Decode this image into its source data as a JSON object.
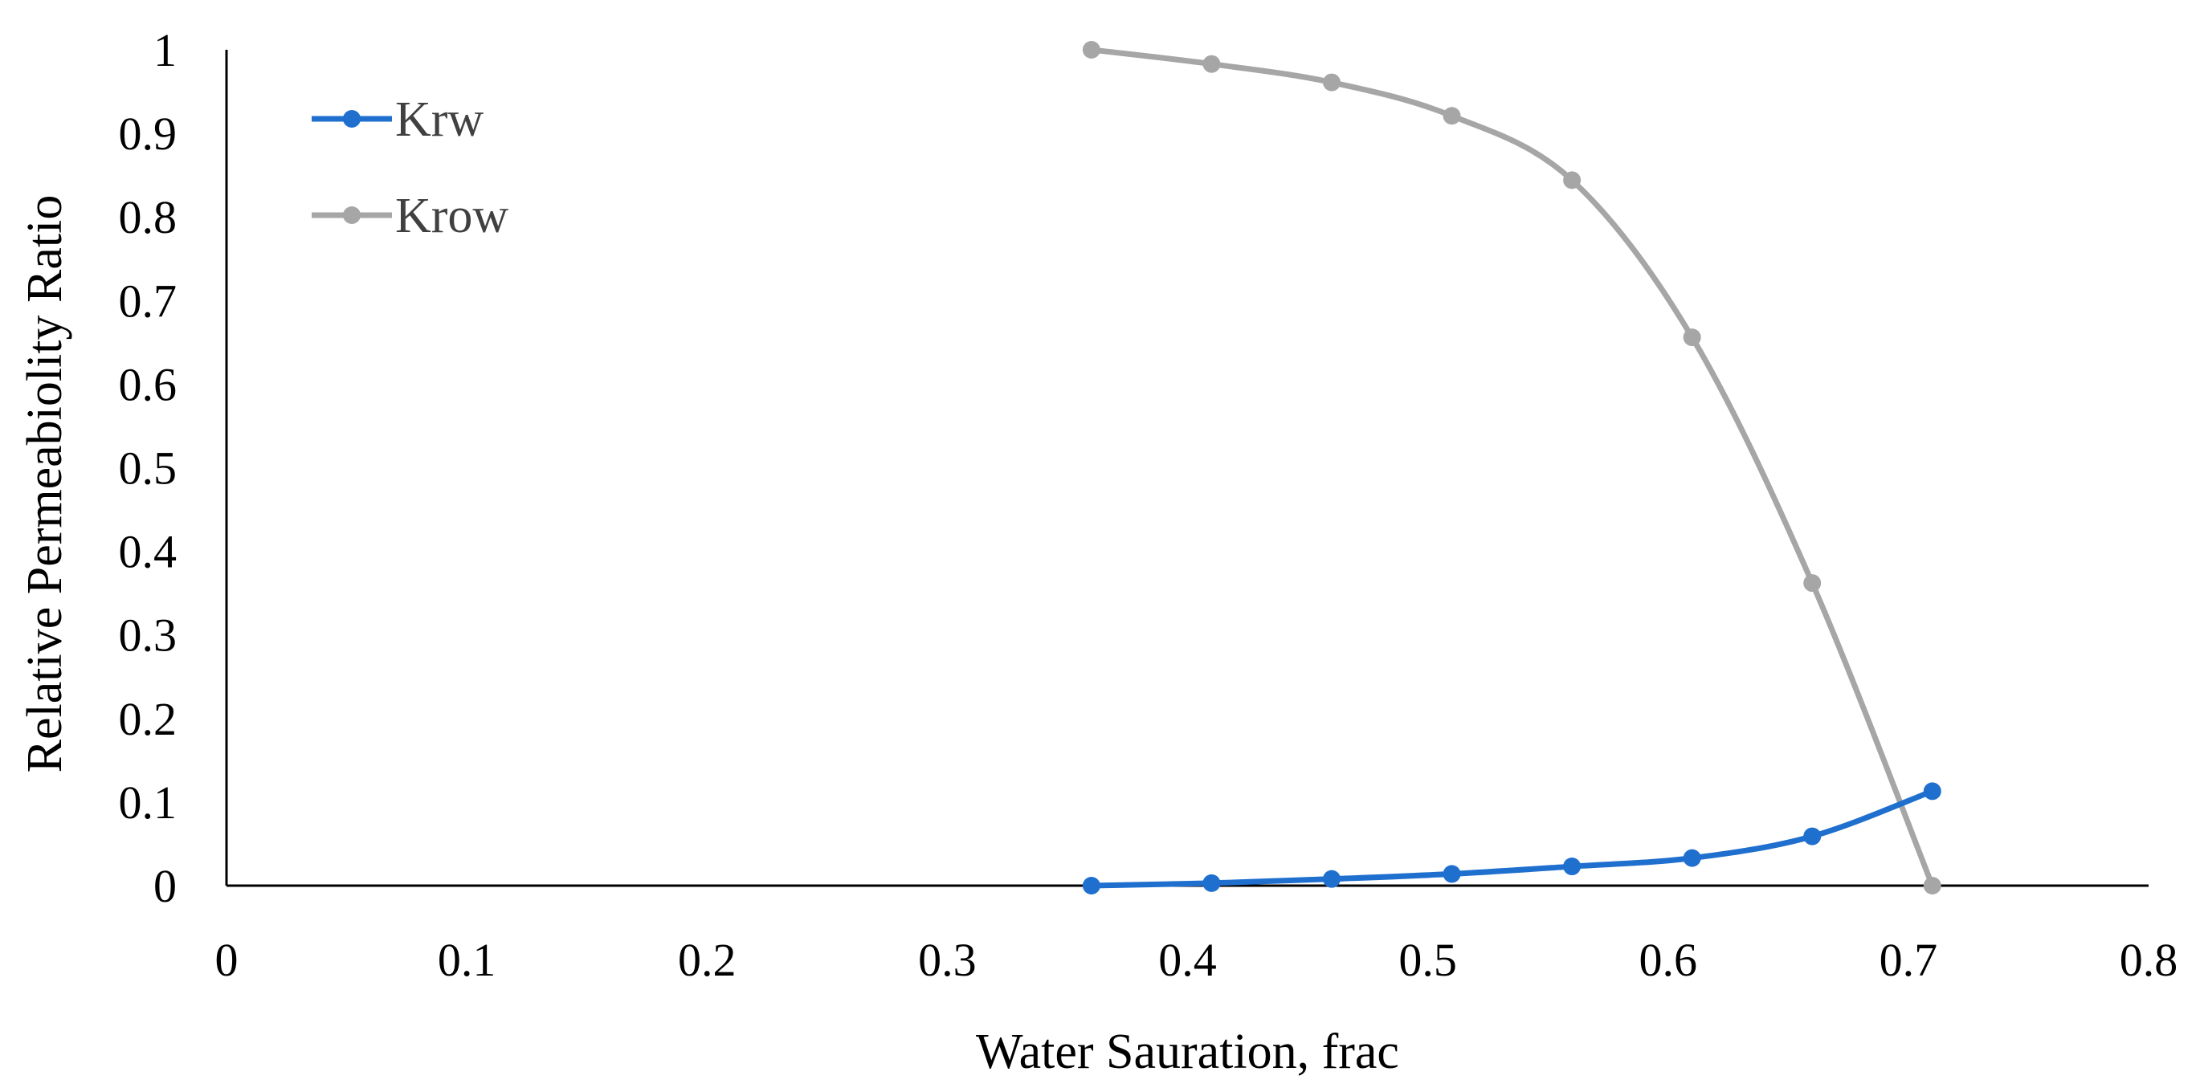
{
  "chart_data": {
    "type": "line",
    "title": "",
    "xlabel": "Water Sauration, frac",
    "ylabel": "Relative Permeabiolity Ratio",
    "xlim": [
      0,
      0.8
    ],
    "ylim": [
      0,
      1
    ],
    "x_ticks": [
      0,
      0.1,
      0.2,
      0.3,
      0.4,
      0.5,
      0.6,
      0.7,
      0.8
    ],
    "x_tick_labels": [
      "0",
      "0.1",
      "0.2",
      "0.3",
      "0.4",
      "0.5",
      "0.6",
      "0.7",
      "0.8"
    ],
    "y_ticks": [
      0,
      0.1,
      0.2,
      0.3,
      0.4,
      0.5,
      0.6,
      0.7,
      0.8,
      0.9,
      1
    ],
    "y_tick_labels": [
      "0",
      "0.1",
      "0.2",
      "0.3",
      "0.4",
      "0.5",
      "0.6",
      "0.7",
      "0.8",
      "0.9",
      "1"
    ],
    "grid": false,
    "legend_position": "top-left",
    "series": [
      {
        "name": "Krw",
        "color": "#1f6fcf",
        "x": [
          0.36,
          0.41,
          0.46,
          0.51,
          0.56,
          0.61,
          0.66,
          0.71
        ],
        "y": [
          0.0,
          0.003,
          0.008,
          0.014,
          0.023,
          0.033,
          0.059,
          0.113
        ]
      },
      {
        "name": "Krow",
        "color": "#a6a6a6",
        "x": [
          0.36,
          0.41,
          0.46,
          0.51,
          0.56,
          0.61,
          0.66,
          0.71
        ],
        "y": [
          1.0,
          0.983,
          0.961,
          0.921,
          0.844,
          0.656,
          0.362,
          0.0
        ]
      }
    ]
  }
}
